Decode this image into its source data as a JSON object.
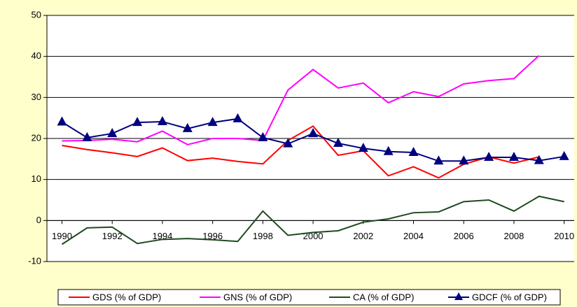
{
  "chart_data": {
    "type": "line",
    "x": [
      1990,
      1991,
      1992,
      1993,
      1994,
      1995,
      1996,
      1997,
      1998,
      1999,
      2000,
      2001,
      2002,
      2003,
      2004,
      2005,
      2006,
      2007,
      2008,
      2009,
      2010
    ],
    "xlim": [
      1989.4,
      2010.4
    ],
    "xticks": [
      1990,
      1992,
      1994,
      1996,
      1998,
      2000,
      2002,
      2004,
      2006,
      2008,
      2010
    ],
    "ylim": [
      -10,
      50
    ],
    "yticks": [
      -10,
      0,
      10,
      20,
      30,
      40,
      50
    ],
    "grid": true,
    "legend": "bottom",
    "series": [
      {
        "name": "GDS (% of GDP)",
        "color": "#ff0000",
        "values": [
          18.3,
          17.3,
          16.5,
          15.6,
          17.7,
          14.6,
          15.2,
          14.4,
          13.8,
          19.5,
          23.0,
          15.9,
          17.0,
          10.9,
          13.1,
          10.4,
          13.7,
          15.5,
          14.0,
          15.5,
          null
        ]
      },
      {
        "name": "GNS (% of GDP)",
        "color": "#ff00ff",
        "values": [
          19.4,
          19.5,
          19.8,
          19.2,
          21.8,
          18.5,
          20.0,
          20.0,
          19.5,
          31.8,
          36.8,
          32.3,
          33.5,
          28.7,
          31.4,
          30.2,
          33.3,
          34.1,
          34.6,
          40.2,
          null
        ]
      },
      {
        "name": "CA (% of GDP)",
        "color": "#1f4a1f",
        "values": [
          -5.8,
          -1.8,
          -1.6,
          -5.6,
          -4.6,
          -4.4,
          -4.7,
          -5.1,
          2.3,
          -3.6,
          -2.9,
          -2.5,
          -0.4,
          0.4,
          1.9,
          2.1,
          4.6,
          5.0,
          2.3,
          5.9,
          4.6
        ]
      },
      {
        "name": "GDCF (% of GDP)",
        "color": "#000080",
        "marker": "triangle",
        "values": [
          24.0,
          20.2,
          21.2,
          23.9,
          24.1,
          22.4,
          23.9,
          24.8,
          20.2,
          18.7,
          21.2,
          18.8,
          17.6,
          16.8,
          16.6,
          14.5,
          14.5,
          15.4,
          15.4,
          14.6,
          15.6
        ]
      }
    ]
  }
}
